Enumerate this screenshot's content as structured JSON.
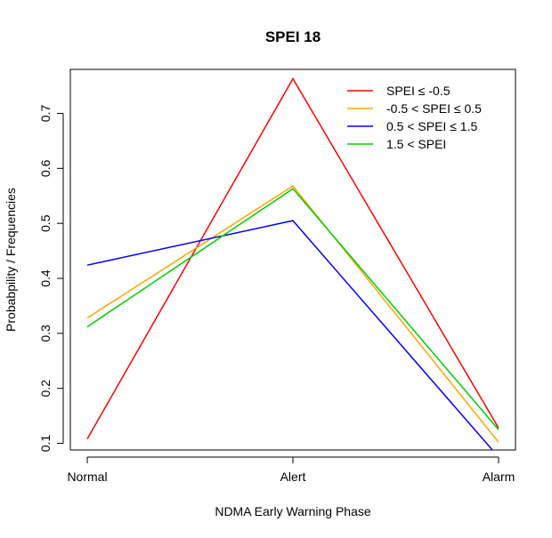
{
  "chart_data": {
    "type": "line",
    "title": "SPEI 18",
    "xlabel": "NDMA Early Warning Phase",
    "ylabel": "Probabpility / Frequencies",
    "categories": [
      "Normal",
      "Alert",
      "Alarm"
    ],
    "y_ticks": [
      "0.1",
      "0.2",
      "0.3",
      "0.4",
      "0.5",
      "0.6",
      "0.7"
    ],
    "ylim": [
      0.088,
      0.78
    ],
    "grid": false,
    "legend_position": "top-right",
    "series": [
      {
        "name": "SPEI ≤ -0.5",
        "color": "#ff0000",
        "values": [
          0.108,
          0.763,
          0.128
        ]
      },
      {
        "name": "-0.5 < SPEI ≤ 0.5",
        "color": "#ffa500",
        "values": [
          0.328,
          0.568,
          0.102
        ]
      },
      {
        "name": "0.5 < SPEI ≤ 1.5",
        "color": "#0000ff",
        "values": [
          0.424,
          0.505,
          0.075
        ]
      },
      {
        "name": "1.5 < SPEI",
        "color": "#00cd00",
        "values": [
          0.312,
          0.563,
          0.125
        ]
      }
    ]
  }
}
